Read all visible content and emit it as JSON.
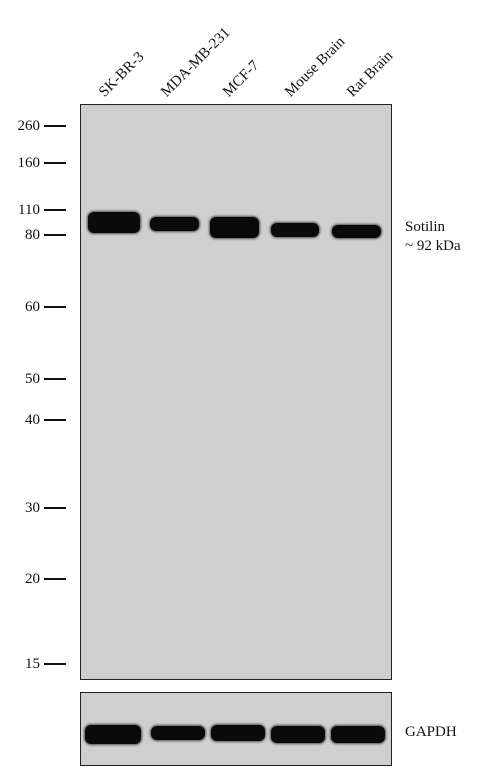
{
  "lanes": [
    "SK-BR-3",
    "MDA-MB-231",
    "MCF-7",
    "Mouse Brain",
    "Rat Brain"
  ],
  "markers": [
    "260",
    "160",
    "110",
    "80",
    "60",
    "50",
    "40",
    "30",
    "20",
    "15"
  ],
  "target": {
    "name": "Sotilin",
    "size": "~ 92 kDa"
  },
  "loading_control": "GAPDH"
}
